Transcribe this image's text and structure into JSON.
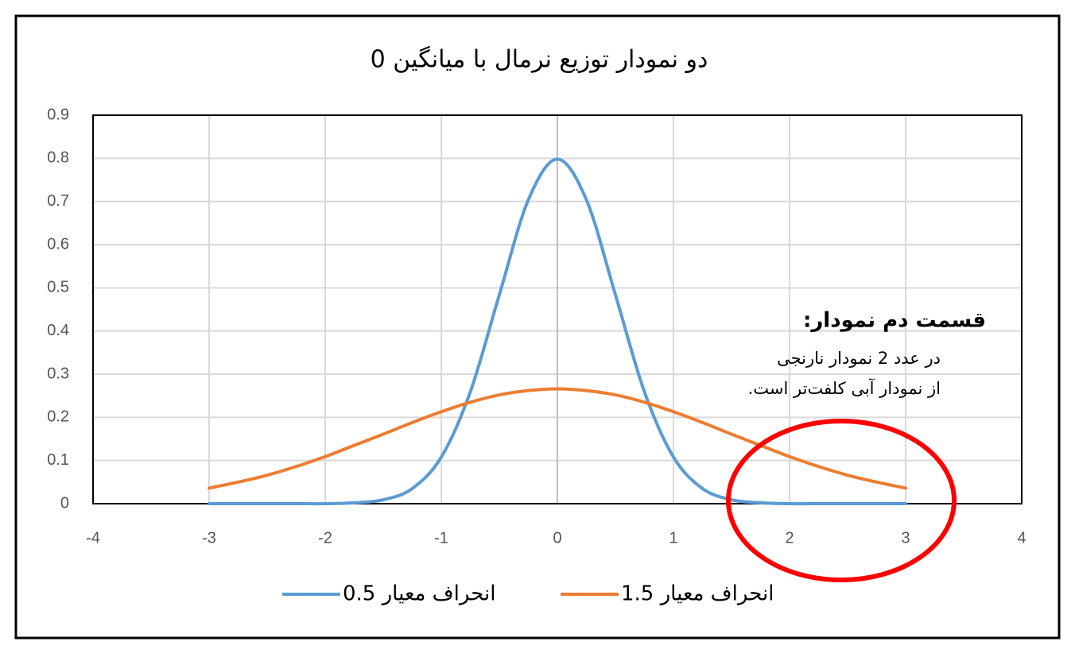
{
  "chart_data": {
    "type": "line",
    "title": "دو نمودار توزیع نرمال با میانگین 0",
    "x": [
      -3,
      -2.75,
      -2.5,
      -2.25,
      -2,
      -1.75,
      -1.5,
      -1.25,
      -1,
      -0.75,
      -0.5,
      -0.25,
      0,
      0.25,
      0.5,
      0.75,
      1,
      1.25,
      1.5,
      1.75,
      2,
      2.25,
      2.5,
      2.75,
      3
    ],
    "series": [
      {
        "name": "انحراف معیار 0.5",
        "color": "#5b9bd5",
        "values": [
          0,
          0,
          0,
          0,
          0,
          0.002,
          0.009,
          0.035,
          0.108,
          0.259,
          0.484,
          0.704,
          0.798,
          0.704,
          0.484,
          0.259,
          0.108,
          0.035,
          0.009,
          0.002,
          0,
          0,
          0,
          0,
          0
        ]
      },
      {
        "name": "انحراف معیار 1.5",
        "color": "#ed7d31",
        "values": [
          0.036,
          0.05,
          0.066,
          0.086,
          0.109,
          0.135,
          0.161,
          0.188,
          0.213,
          0.235,
          0.252,
          0.262,
          0.266,
          0.262,
          0.252,
          0.235,
          0.213,
          0.188,
          0.161,
          0.135,
          0.109,
          0.086,
          0.066,
          0.05,
          0.036
        ]
      }
    ],
    "xlim": [
      -4,
      4
    ],
    "xticks": [
      -4,
      -3,
      -2,
      -1,
      0,
      1,
      2,
      3,
      4
    ],
    "ylim": [
      0,
      0.9
    ],
    "yticks": [
      0,
      0.1,
      0.2,
      0.3,
      0.4,
      0.5,
      0.6,
      0.7,
      0.8,
      0.9
    ],
    "grid": true,
    "annotation": {
      "heading": "قسمت دم نمودار:",
      "lines": [
        "در عدد 2 نمودار نارنجی",
        "از نمودار آبی کلفت‌تر است."
      ]
    }
  }
}
